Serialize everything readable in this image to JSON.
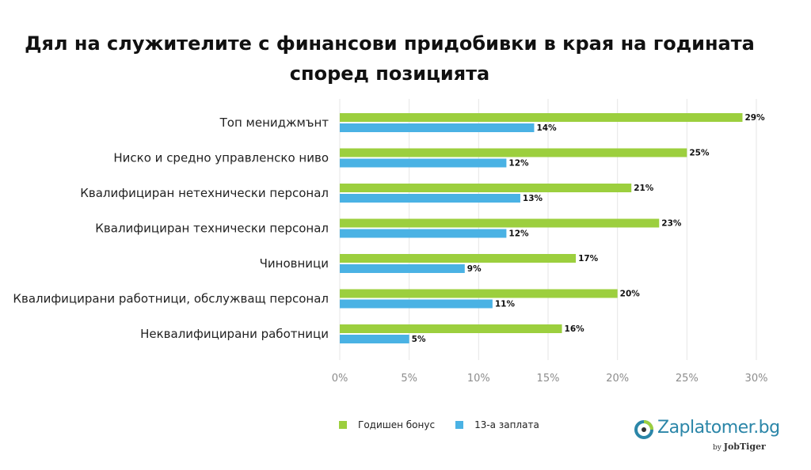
{
  "title_line1": "Дял на служителите с финансови придобивки в края на годината",
  "title_line2": "според позицията",
  "colors": {
    "bonus": "#9ccf3e",
    "salary13": "#4ab2e4",
    "grid": "#e6e6e6",
    "tick": "#8c8c8c"
  },
  "chart_data": {
    "type": "bar",
    "orientation": "horizontal",
    "categories": [
      "Топ мениджмънт",
      "Ниско и средно управленско ниво",
      "Квалифициран нетехнически персонал",
      "Квалифициран технически персонал",
      "Чиновници",
      "Квалифицирани работници, обслужващ персонал",
      "Неквалифицирани работници"
    ],
    "series": [
      {
        "name": "Годишен бонус",
        "values": [
          29,
          25,
          21,
          23,
          17,
          20,
          16
        ]
      },
      {
        "name": "13-а заплата",
        "values": [
          14,
          12,
          13,
          12,
          9,
          11,
          5
        ]
      }
    ],
    "xlim": [
      0,
      30
    ],
    "xticks": [
      "0%",
      "5%",
      "10%",
      "15%",
      "20%",
      "25%",
      "30%"
    ],
    "data_label_suffix": "%",
    "grid": true,
    "legend_position": "bottom"
  },
  "logo": {
    "name": "Zaplatomer.bg",
    "by": "by",
    "brand": "JobTiger"
  }
}
